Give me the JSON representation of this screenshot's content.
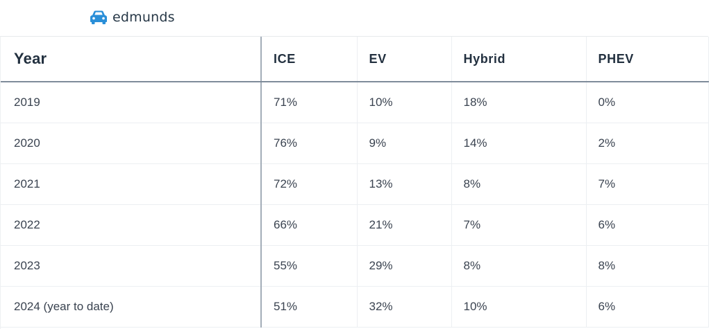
{
  "brand": {
    "name": "edmunds",
    "icon": "car-icon",
    "color": "#2a8fd8"
  },
  "chart_data": {
    "type": "table",
    "columns": [
      "Year",
      "ICE",
      "EV",
      "Hybrid",
      "PHEV"
    ],
    "rows": [
      [
        "2019",
        "71%",
        "10%",
        "18%",
        "0%"
      ],
      [
        "2020",
        "76%",
        "9%",
        "14%",
        "2%"
      ],
      [
        "2021",
        "72%",
        "13%",
        "8%",
        "7%"
      ],
      [
        "2022",
        "66%",
        "21%",
        "7%",
        "6%"
      ],
      [
        "2023",
        "55%",
        "29%",
        "8%",
        "8%"
      ],
      [
        "2024 (year to date)",
        "51%",
        "32%",
        "10%",
        "6%"
      ]
    ]
  }
}
